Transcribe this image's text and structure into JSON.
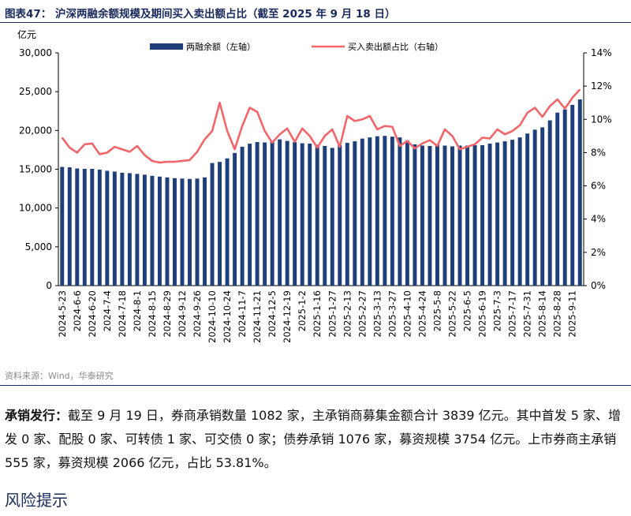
{
  "figure": {
    "title": "图表47： 沪深两融余额规模及期间买入卖出额占比（截至 2025 年 9 月 18 日）",
    "source": "资料来源：Wind，华泰研究"
  },
  "body_text": {
    "lead": "承销发行：",
    "text": "截至 9 月 19 日，券商承销数量 1082 家，主承销商募集金额合计 3839 亿元。其中首发 5 家、增发 0 家、配股 0 家、可转债 1 家、可交债 0 家；债券承销 1076 家，募资规模 3754 亿元。上市券商主承销 555 家，募资规模 2066 亿元，占比 53.81%。"
  },
  "section": {
    "title": "风险提示"
  },
  "colors": {
    "bar": "#1f3f7a",
    "line": "#f0666a",
    "title": "#1a2a5c",
    "axis": "#000000"
  },
  "chart_data": {
    "type": "bar+line",
    "title": "沪深两融余额规模及期间买入卖出额占比（截至 2025 年 9 月 18 日）",
    "y_left_unit": "亿元",
    "y_left_range": [
      0,
      30000
    ],
    "y_left_ticks": [
      "0",
      "5,000",
      "10,000",
      "15,000",
      "20,000",
      "25,000",
      "30,000"
    ],
    "y_right_range": [
      0,
      14
    ],
    "y_right_ticks": [
      "0%",
      "2%",
      "4%",
      "6%",
      "8%",
      "10%",
      "12%",
      "14%"
    ],
    "legend_position": "top",
    "categories": [
      "2024-5-23",
      "2024-5-30",
      "2024-6-6",
      "2024-6-13",
      "2024-6-20",
      "2024-6-27",
      "2024-7-4",
      "2024-7-11",
      "2024-7-18",
      "2024-7-25",
      "2024-8-1",
      "2024-8-8",
      "2024-8-15",
      "2024-8-22",
      "2024-8-29",
      "2024-9-5",
      "2024-9-12",
      "2024-9-19",
      "2024-9-26",
      "2024-10-3",
      "2024-10-10",
      "2024-10-17",
      "2024-10-24",
      "2024-10-31",
      "2024-11-7",
      "2024-11-14",
      "2024-11-21",
      "2024-11-28",
      "2024-12-5",
      "2024-12-12",
      "2024-12-19",
      "2024-12-26",
      "2025-1-2",
      "2025-1-9",
      "2025-1-16",
      "2025-1-23",
      "2025-1-27",
      "2025-2-6",
      "2025-2-13",
      "2025-2-20",
      "2025-2-27",
      "2025-3-6",
      "2025-3-13",
      "2025-3-20",
      "2025-3-27",
      "2025-4-3",
      "2025-4-10",
      "2025-4-17",
      "2025-4-24",
      "2025-4-30",
      "2025-5-8",
      "2025-5-15",
      "2025-5-22",
      "2025-5-29",
      "2025-6-5",
      "2025-6-12",
      "2025-6-19",
      "2025-6-26",
      "2025-7-3",
      "2025-7-10",
      "2025-7-17",
      "2025-7-24",
      "2025-7-31",
      "2025-8-7",
      "2025-8-14",
      "2025-8-21",
      "2025-8-28",
      "2025-9-4",
      "2025-9-11",
      "2025-9-18"
    ],
    "tick_labels": [
      "2024-5-23",
      "2024-6-6",
      "2024-6-20",
      "2024-7-4",
      "2024-7-18",
      "2024-8-1",
      "2024-8-15",
      "2024-8-29",
      "2024-9-12",
      "2024-9-26",
      "2024-10-10",
      "2024-10-24",
      "2024-11-7",
      "2024-11-21",
      "2024-12-5",
      "2024-12-19",
      "2025-1-2",
      "2025-1-16",
      "2025-1-27",
      "2025-2-13",
      "2025-2-27",
      "2025-3-13",
      "2025-3-27",
      "2025-4-10",
      "2025-4-24",
      "2025-5-8",
      "2025-5-22",
      "2025-6-5",
      "2025-6-19",
      "2025-7-3",
      "2025-7-17",
      "2025-7-31",
      "2025-8-14",
      "2025-8-28",
      "2025-9-11"
    ],
    "series": [
      {
        "name": "两融余额（左轴）",
        "type": "bar",
        "axis": "left",
        "values": [
          15300,
          15250,
          15100,
          15050,
          15050,
          14950,
          14800,
          14700,
          14550,
          14500,
          14400,
          14300,
          14150,
          14050,
          13950,
          13850,
          13800,
          13750,
          13800,
          13950,
          15800,
          15950,
          16400,
          17100,
          17900,
          18300,
          18500,
          18450,
          18600,
          18850,
          18650,
          18500,
          18350,
          18300,
          18150,
          18000,
          17750,
          18100,
          18400,
          18600,
          18950,
          19100,
          19250,
          19300,
          19200,
          19100,
          18700,
          18200,
          18050,
          18000,
          18150,
          18050,
          17950,
          18050,
          18050,
          18100,
          18100,
          18300,
          18450,
          18600,
          18800,
          19100,
          19600,
          20100,
          20400,
          21300,
          22300,
          22700,
          23300,
          24000
        ]
      },
      {
        "name": "买入卖出额占比（右轴）",
        "type": "line",
        "axis": "right",
        "values": [
          8.9,
          8.3,
          8.0,
          8.5,
          8.55,
          7.9,
          8.0,
          8.35,
          8.2,
          8.05,
          8.4,
          7.85,
          7.5,
          7.4,
          7.45,
          7.45,
          7.5,
          7.55,
          8.05,
          8.8,
          9.3,
          11.0,
          9.3,
          8.2,
          9.6,
          10.7,
          10.45,
          9.3,
          8.6,
          9.1,
          9.45,
          8.65,
          9.45,
          9.0,
          8.3,
          9.0,
          9.4,
          8.35,
          10.2,
          9.9,
          10.0,
          10.2,
          9.4,
          9.6,
          9.55,
          8.4,
          8.7,
          8.25,
          8.55,
          8.75,
          8.4,
          9.4,
          9.0,
          8.2,
          8.35,
          8.5,
          8.9,
          8.85,
          9.4,
          9.1,
          9.3,
          9.65,
          10.4,
          10.7,
          10.15,
          10.8,
          11.2,
          10.65,
          11.3,
          11.8
        ]
      }
    ]
  }
}
